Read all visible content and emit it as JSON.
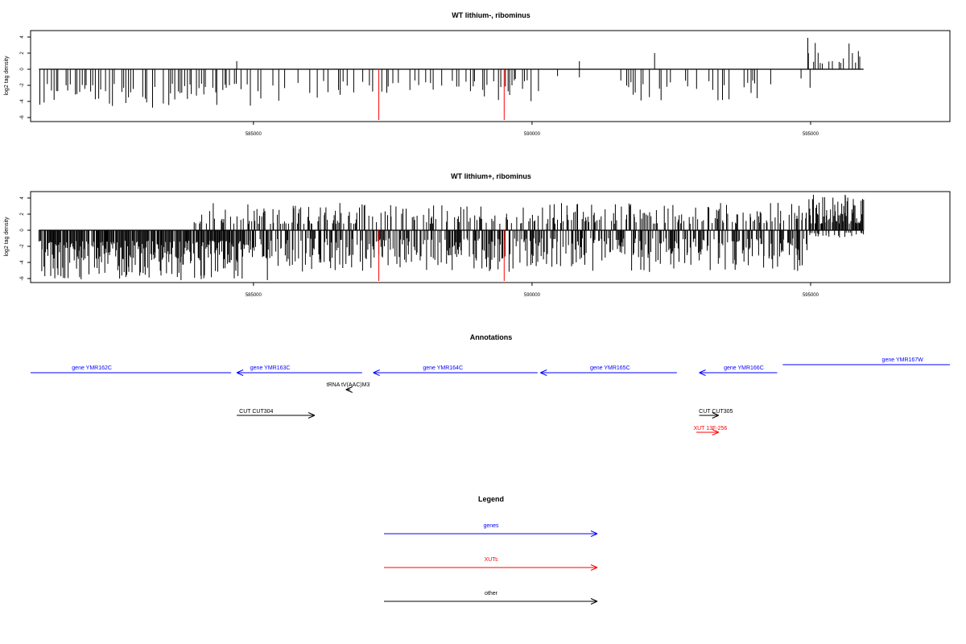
{
  "colors": {
    "gene": "#0000ff",
    "xut": "#ff0000",
    "other": "#000000",
    "marker": "#ff0000",
    "axis": "#000000"
  },
  "chart_data": [
    {
      "type": "bar",
      "title": "WT lithium-, ribominus",
      "ylabel": "log2 tag density",
      "xlim": [
        581000,
        597500
      ],
      "ylim": [
        -6.5,
        4.8
      ],
      "x_ticks": [
        585000,
        590000,
        595000
      ],
      "x_tick_labels": [
        "585000",
        "590000",
        "595000"
      ],
      "y_ticks": [
        -6,
        -4,
        -2,
        0,
        2,
        4
      ],
      "y_tick_labels": [
        "-6",
        "-4",
        "-2",
        "0",
        "2",
        "4"
      ],
      "data_extent": [
        581150,
        595950
      ],
      "markers": [
        587250,
        589500
      ],
      "series": [
        {
          "seed": 7,
          "step": 42,
          "segments": [
            {
              "from": 581150,
              "to": 584950,
              "density": 0.72,
              "sign": -1,
              "min": 1.8,
              "max": 4.8
            },
            {
              "from": 584950,
              "to": 586950,
              "density": 0.36,
              "sign": -1,
              "min": 1.4,
              "max": 4.0
            },
            {
              "from": 586950,
              "to": 590350,
              "density": 0.36,
              "sign": -1,
              "min": 1.3,
              "max": 4.0
            },
            {
              "from": 590350,
              "to": 591600,
              "density": 0.08,
              "sign": -1,
              "min": 0.8,
              "max": 2.0
            },
            {
              "from": 591600,
              "to": 594100,
              "density": 0.5,
              "sign": -1,
              "min": 1.4,
              "max": 4.3
            },
            {
              "from": 594100,
              "to": 594950,
              "density": 0.12,
              "sign": -1,
              "min": 1.0,
              "max": 2.5
            },
            {
              "from": 594950,
              "to": 595950,
              "density": 0.32,
              "sign": 1,
              "min": 0.7,
              "max": 3.4
            }
          ],
          "explicit": [
            [
              584700,
              1.0
            ],
            [
              589700,
              -1.2
            ],
            [
              590850,
              1.0
            ],
            [
              590850,
              -1.0
            ],
            [
              592200,
              2.0
            ],
            [
              594950,
              3.9
            ],
            [
              594990,
              -2.3
            ],
            [
              595750,
              2.0
            ]
          ]
        }
      ]
    },
    {
      "type": "bar",
      "title": "WT lithium+, ribominus",
      "ylabel": "log2 tag density",
      "xlim": [
        581000,
        597500
      ],
      "ylim": [
        -6.5,
        4.8
      ],
      "x_ticks": [
        585000,
        590000,
        595000
      ],
      "x_tick_labels": [
        "585000",
        "590000",
        "595000"
      ],
      "y_ticks": [
        -6,
        -4,
        -2,
        0,
        2,
        4
      ],
      "y_tick_labels": [
        "-6",
        "-4",
        "-2",
        "0",
        "2",
        "4"
      ],
      "data_extent": [
        581150,
        595950
      ],
      "markers": [
        587250,
        589500
      ],
      "series": [
        {
          "seed": 31,
          "step": 14,
          "segments": [
            {
              "from": 581150,
              "to": 584950,
              "density": 0.92,
              "sign": -1,
              "min": 1.3,
              "max": 6.1
            },
            {
              "from": 583900,
              "to": 594950,
              "density": 0.32,
              "sign": 1,
              "min": 0.8,
              "max": 3.4
            },
            {
              "from": 584950,
              "to": 594950,
              "density": 0.55,
              "sign": -1,
              "min": 1.0,
              "max": 5.2
            },
            {
              "from": 594950,
              "to": 595950,
              "density": 0.85,
              "sign": 1,
              "min": 0.8,
              "max": 4.3
            },
            {
              "from": 594950,
              "to": 595950,
              "density": 0.3,
              "sign": -1,
              "min": 0.3,
              "max": 0.9
            }
          ],
          "explicit": [
            [
              584900,
              3.2
            ],
            [
              586950,
              3.2
            ],
            [
              587250,
              -3.0
            ],
            [
              585250,
              -6.2
            ],
            [
              583700,
              -6.2
            ],
            [
              595050,
              4.4
            ],
            [
              595620,
              4.4
            ]
          ]
        }
      ]
    }
  ],
  "annotations": {
    "title": "Annotations",
    "xlim": [
      581000,
      597500
    ],
    "features": [
      {
        "label": "gene YMR162C",
        "type": "gene",
        "start": 581000,
        "end": 584600,
        "strand": "-",
        "arrow": false,
        "row": 0,
        "label_x": 582100
      },
      {
        "label": "gene YMR163C",
        "type": "gene",
        "start": 584700,
        "end": 586950,
        "strand": "-",
        "arrow": true,
        "row": 0,
        "label_x": 585300
      },
      {
        "label": "gene YMR164C",
        "type": "gene",
        "start": 587150,
        "end": 590100,
        "strand": "-",
        "arrow": true,
        "row": 0,
        "label_x": 588400
      },
      {
        "label": "gene YMR165C",
        "type": "gene",
        "start": 590150,
        "end": 592600,
        "strand": "-",
        "arrow": true,
        "row": 0,
        "label_x": 591400
      },
      {
        "label": "gene YMR166C",
        "type": "gene",
        "start": 593000,
        "end": 594400,
        "strand": "-",
        "arrow": true,
        "row": 0,
        "label_x": 593800
      },
      {
        "label": "gene YMR167W",
        "type": "gene",
        "start": 594500,
        "end": 597500,
        "strand": "+",
        "arrow": false,
        "row": -1,
        "label_x": 596650
      },
      {
        "label": "tRNA tV(AAC)M3",
        "type": "other",
        "start": 586660,
        "end": 586740,
        "strand": "-",
        "arrow": true,
        "row": 1,
        "label_x": 586700
      },
      {
        "label": "CUT CUT304",
        "type": "other",
        "start": 584700,
        "end": 586100,
        "strand": "+",
        "arrow": true,
        "row": 2,
        "label_x": 585050
      },
      {
        "label": "CUT CUT305",
        "type": "other",
        "start": 593000,
        "end": 593350,
        "strand": "+",
        "arrow": true,
        "row": 2,
        "label_x": 593300
      },
      {
        "label": "XUT 13F-256",
        "type": "xut",
        "start": 592950,
        "end": 593350,
        "strand": "+",
        "arrow": true,
        "row": 3,
        "label_x": 593200
      }
    ]
  },
  "legend": {
    "title": "Legend",
    "items": [
      {
        "label": "genes",
        "type": "gene"
      },
      {
        "label": "XUTs",
        "type": "xut"
      },
      {
        "label": "other",
        "type": "other"
      }
    ]
  }
}
